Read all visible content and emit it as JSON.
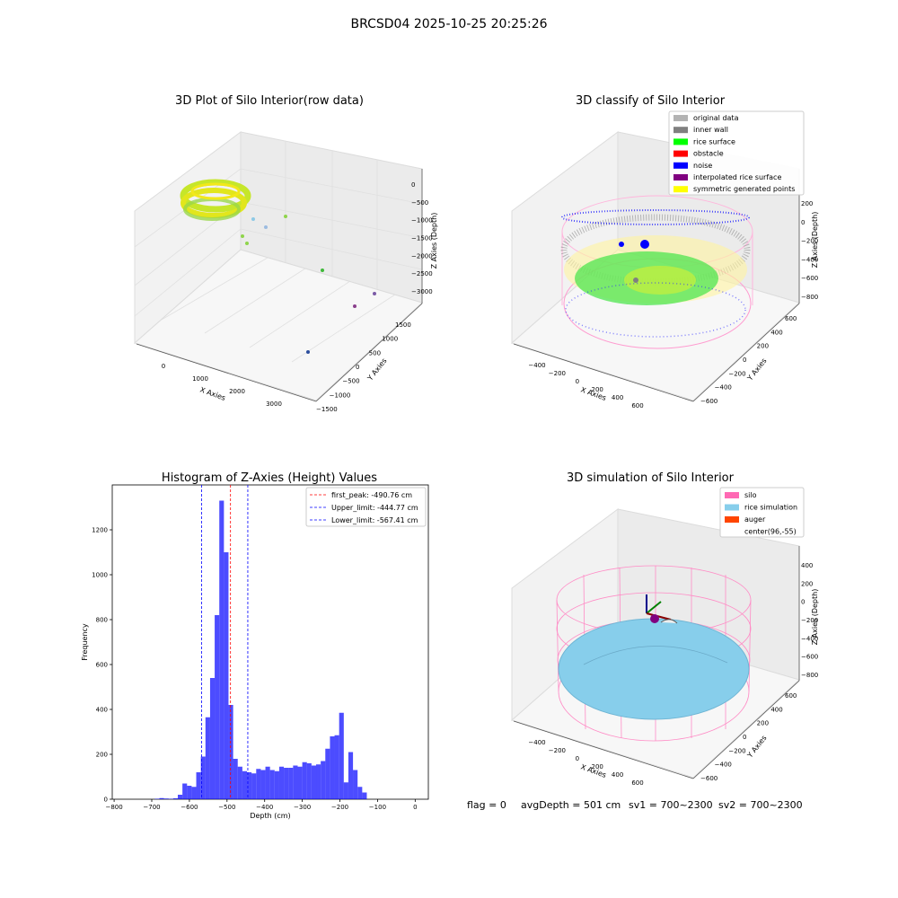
{
  "figure": {
    "title": "BRCSD04 2025-10-25 20:25:26",
    "footer": {
      "flag": "flag = 0",
      "avg_depth": "avgDepth = 501 cm",
      "sv1": "sv1 = 700~2300",
      "sv2": "sv2 = 700~2300"
    }
  },
  "panel_raw": {
    "title": "3D Plot of Silo Interior(row data)",
    "xlabel": "X Axies",
    "ylabel": "Y Axies",
    "zlabel": "Z Axies (Depth)",
    "xticks": [
      "0",
      "1000",
      "2000",
      "3000"
    ],
    "yticks": [
      "1500",
      "1000",
      "500",
      "0",
      "−500",
      "−1000",
      "−1500"
    ],
    "zticks": [
      "0",
      "−500",
      "−1000",
      "−1500",
      "−2000",
      "−2500",
      "−3000"
    ]
  },
  "panel_classify": {
    "title": "3D classify of Silo Interior",
    "xlabel": "X Axies",
    "ylabel": "Y Axies",
    "zlabel": "Z Axies (Depth)",
    "xticks": [
      "−400",
      "−200",
      "0",
      "200",
      "400",
      "600"
    ],
    "yticks": [
      "600",
      "400",
      "200",
      "0",
      "−200",
      "−400",
      "−600"
    ],
    "zticks": [
      "200",
      "0",
      "−200",
      "−400",
      "−600",
      "−800"
    ],
    "legend": [
      {
        "label": "original data",
        "color": "#b3b3b3"
      },
      {
        "label": "inner wall",
        "color": "#808080"
      },
      {
        "label": "rice surface",
        "color": "#00ff00"
      },
      {
        "label": "obstacle",
        "color": "#ff0000"
      },
      {
        "label": "noise",
        "color": "#0000ff"
      },
      {
        "label": "interpolated rice surface",
        "color": "#800080"
      },
      {
        "label": "symmetric generated points",
        "color": "#ffff00"
      }
    ]
  },
  "panel_sim": {
    "title": "3D simulation of Silo Interior",
    "xlabel": "X Axies",
    "ylabel": "Y Axies",
    "zlabel": "Z Axies (Depth)",
    "xticks": [
      "−400",
      "−200",
      "0",
      "200",
      "400",
      "600"
    ],
    "yticks": [
      "600",
      "400",
      "200",
      "0",
      "−200",
      "−400",
      "−600"
    ],
    "zticks": [
      "400",
      "200",
      "0",
      "−200",
      "−400",
      "−600",
      "−800"
    ],
    "legend": [
      {
        "label": "silo",
        "color": "#ff69b4"
      },
      {
        "label": "rice simulation",
        "color": "#87ceeb"
      },
      {
        "label": "auger",
        "color": "#ff4500"
      },
      {
        "label": "center(96,-55)",
        "color": ""
      }
    ]
  },
  "chart_data": {
    "type": "bar",
    "title": "Histogram of Z-Axies (Height) Values",
    "xlabel": "Depth (cm)",
    "ylabel": "Frequency",
    "xlim": [
      -805,
      35
    ],
    "ylim": [
      0,
      1400
    ],
    "xticks": [
      -800,
      -700,
      -600,
      -500,
      -400,
      -300,
      -200,
      -100,
      0
    ],
    "xtick_labels": [
      "−800",
      "−700",
      "−600",
      "−500",
      "−400",
      "−300",
      "−200",
      "−100",
      "0"
    ],
    "yticks": [
      0,
      200,
      400,
      600,
      800,
      1000,
      1200
    ],
    "bar_color": "#0000ff",
    "bin_width": 12.25,
    "bins": [
      {
        "x0": -692.0,
        "count": 2
      },
      {
        "x0": -679.8,
        "count": 5
      },
      {
        "x0": -667.5,
        "count": 3
      },
      {
        "x0": -655.3,
        "count": 2
      },
      {
        "x0": -643.0,
        "count": 4
      },
      {
        "x0": -630.8,
        "count": 20
      },
      {
        "x0": -618.5,
        "count": 70
      },
      {
        "x0": -606.3,
        "count": 60
      },
      {
        "x0": -594.0,
        "count": 55
      },
      {
        "x0": -581.8,
        "count": 120
      },
      {
        "x0": -569.5,
        "count": 190
      },
      {
        "x0": -557.3,
        "count": 365
      },
      {
        "x0": -545.0,
        "count": 540
      },
      {
        "x0": -532.8,
        "count": 820
      },
      {
        "x0": -520.5,
        "count": 1330
      },
      {
        "x0": -508.3,
        "count": 1100
      },
      {
        "x0": -496.0,
        "count": 420
      },
      {
        "x0": -483.8,
        "count": 180
      },
      {
        "x0": -471.5,
        "count": 145
      },
      {
        "x0": -459.3,
        "count": 125
      },
      {
        "x0": -447.0,
        "count": 120
      },
      {
        "x0": -434.8,
        "count": 115
      },
      {
        "x0": -422.5,
        "count": 135
      },
      {
        "x0": -410.3,
        "count": 130
      },
      {
        "x0": -398.0,
        "count": 145
      },
      {
        "x0": -385.8,
        "count": 130
      },
      {
        "x0": -373.5,
        "count": 125
      },
      {
        "x0": -361.3,
        "count": 145
      },
      {
        "x0": -349.0,
        "count": 140
      },
      {
        "x0": -336.8,
        "count": 140
      },
      {
        "x0": -324.5,
        "count": 150
      },
      {
        "x0": -312.3,
        "count": 145
      },
      {
        "x0": -300.0,
        "count": 165
      },
      {
        "x0": -287.8,
        "count": 160
      },
      {
        "x0": -275.5,
        "count": 150
      },
      {
        "x0": -263.3,
        "count": 155
      },
      {
        "x0": -251.0,
        "count": 170
      },
      {
        "x0": -238.8,
        "count": 225
      },
      {
        "x0": -226.5,
        "count": 280
      },
      {
        "x0": -214.3,
        "count": 285
      },
      {
        "x0": -202.0,
        "count": 385
      },
      {
        "x0": -189.8,
        "count": 75
      },
      {
        "x0": -177.5,
        "count": 210
      },
      {
        "x0": -165.3,
        "count": 130
      },
      {
        "x0": -153.0,
        "count": 55
      },
      {
        "x0": -140.8,
        "count": 30
      }
    ],
    "lines": [
      {
        "x": -490.76,
        "label": "first_peak: -490.76 cm",
        "color": "#ff0000"
      },
      {
        "x": -444.77,
        "label": "Upper_limit: -444.77 cm",
        "color": "#0000ff"
      },
      {
        "x": -567.41,
        "label": "Lower_limit: -567.41 cm",
        "color": "#0000ff"
      }
    ]
  }
}
